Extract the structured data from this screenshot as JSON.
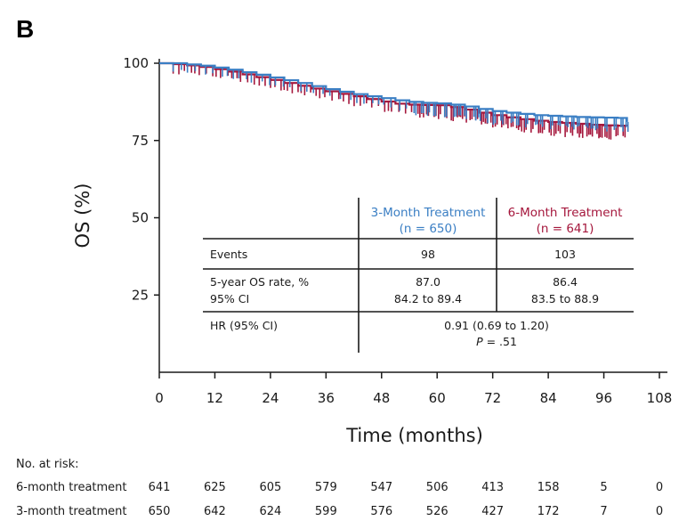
{
  "panel_label": "B",
  "colors": {
    "three_month": "#3b7fc4",
    "six_month": "#a5173c",
    "axis": "#1a1a1a"
  },
  "chart_data": {
    "type": "line",
    "subtype": "kaplan-meier step curve",
    "title": "",
    "xlabel": "Time (months)",
    "ylabel": "OS (%)",
    "xlim": [
      0,
      108
    ],
    "ylim": [
      0,
      100
    ],
    "xticks": [
      0,
      12,
      24,
      36,
      48,
      60,
      72,
      84,
      96,
      108
    ],
    "yticks": [
      25,
      50,
      75,
      100
    ],
    "grid": false,
    "series": [
      {
        "name": "3-Month Treatment",
        "color": "#3b7fc4",
        "x": [
          0,
          3,
          6,
          9,
          12,
          15,
          18,
          21,
          24,
          27,
          30,
          33,
          36,
          39,
          42,
          45,
          48,
          51,
          54,
          57,
          60,
          63,
          66,
          69,
          72,
          75,
          78,
          81,
          84,
          87,
          90,
          93,
          96,
          99,
          101
        ],
        "y": [
          100,
          100,
          99.6,
          99.2,
          98.6,
          97.9,
          97.1,
          96.3,
          95.4,
          94.5,
          93.6,
          92.6,
          91.6,
          90.8,
          90.0,
          89.3,
          88.7,
          88.0,
          87.5,
          87.2,
          87.0,
          86.6,
          86.0,
          85.2,
          84.5,
          84.0,
          83.6,
          83.2,
          83.0,
          82.8,
          82.6,
          82.5,
          82.4,
          82.3,
          81.0
        ]
      },
      {
        "name": "6-Month Treatment",
        "color": "#a5173c",
        "x": [
          0,
          3,
          6,
          9,
          12,
          15,
          18,
          21,
          24,
          27,
          30,
          33,
          36,
          39,
          42,
          45,
          48,
          51,
          54,
          57,
          60,
          63,
          66,
          69,
          72,
          75,
          78,
          81,
          84,
          87,
          90,
          93,
          96,
          99,
          101
        ],
        "y": [
          100,
          99.7,
          99.3,
          98.8,
          98.1,
          97.3,
          96.4,
          95.5,
          94.6,
          93.6,
          92.7,
          91.8,
          90.9,
          90.1,
          89.3,
          88.4,
          87.6,
          86.9,
          86.6,
          86.5,
          86.4,
          85.8,
          85.0,
          84.0,
          83.2,
          82.5,
          81.9,
          81.4,
          81.0,
          80.7,
          80.4,
          80.1,
          79.9,
          79.8,
          79.7
        ]
      }
    ],
    "inset_table": {
      "columns": [
        "3-Month Treatment",
        "(n = 650)",
        "6-Month Treatment",
        "(n = 641)"
      ],
      "rows": [
        {
          "label": "Events",
          "three_month": "98",
          "six_month": "103"
        },
        {
          "label": "5-year OS rate, %",
          "label2": "95% CI",
          "three_month": "87.0",
          "three_month2": "84.2 to 89.4",
          "six_month": "86.4",
          "six_month2": "83.5 to 88.9"
        },
        {
          "label": "HR (95% CI)",
          "combined": "0.91 (0.69 to 1.20)",
          "p_prefix": "P",
          "p_value": " = .51"
        }
      ]
    },
    "at_risk": {
      "title": "No. at risk:",
      "times": [
        0,
        12,
        24,
        36,
        48,
        60,
        72,
        84,
        96,
        108
      ],
      "rows": [
        {
          "label": "6-month treatment",
          "values": [
            641,
            625,
            605,
            579,
            547,
            506,
            413,
            158,
            5,
            0
          ]
        },
        {
          "label": "3-month treatment",
          "values": [
            650,
            642,
            624,
            599,
            576,
            526,
            427,
            172,
            7,
            0
          ]
        }
      ]
    }
  }
}
